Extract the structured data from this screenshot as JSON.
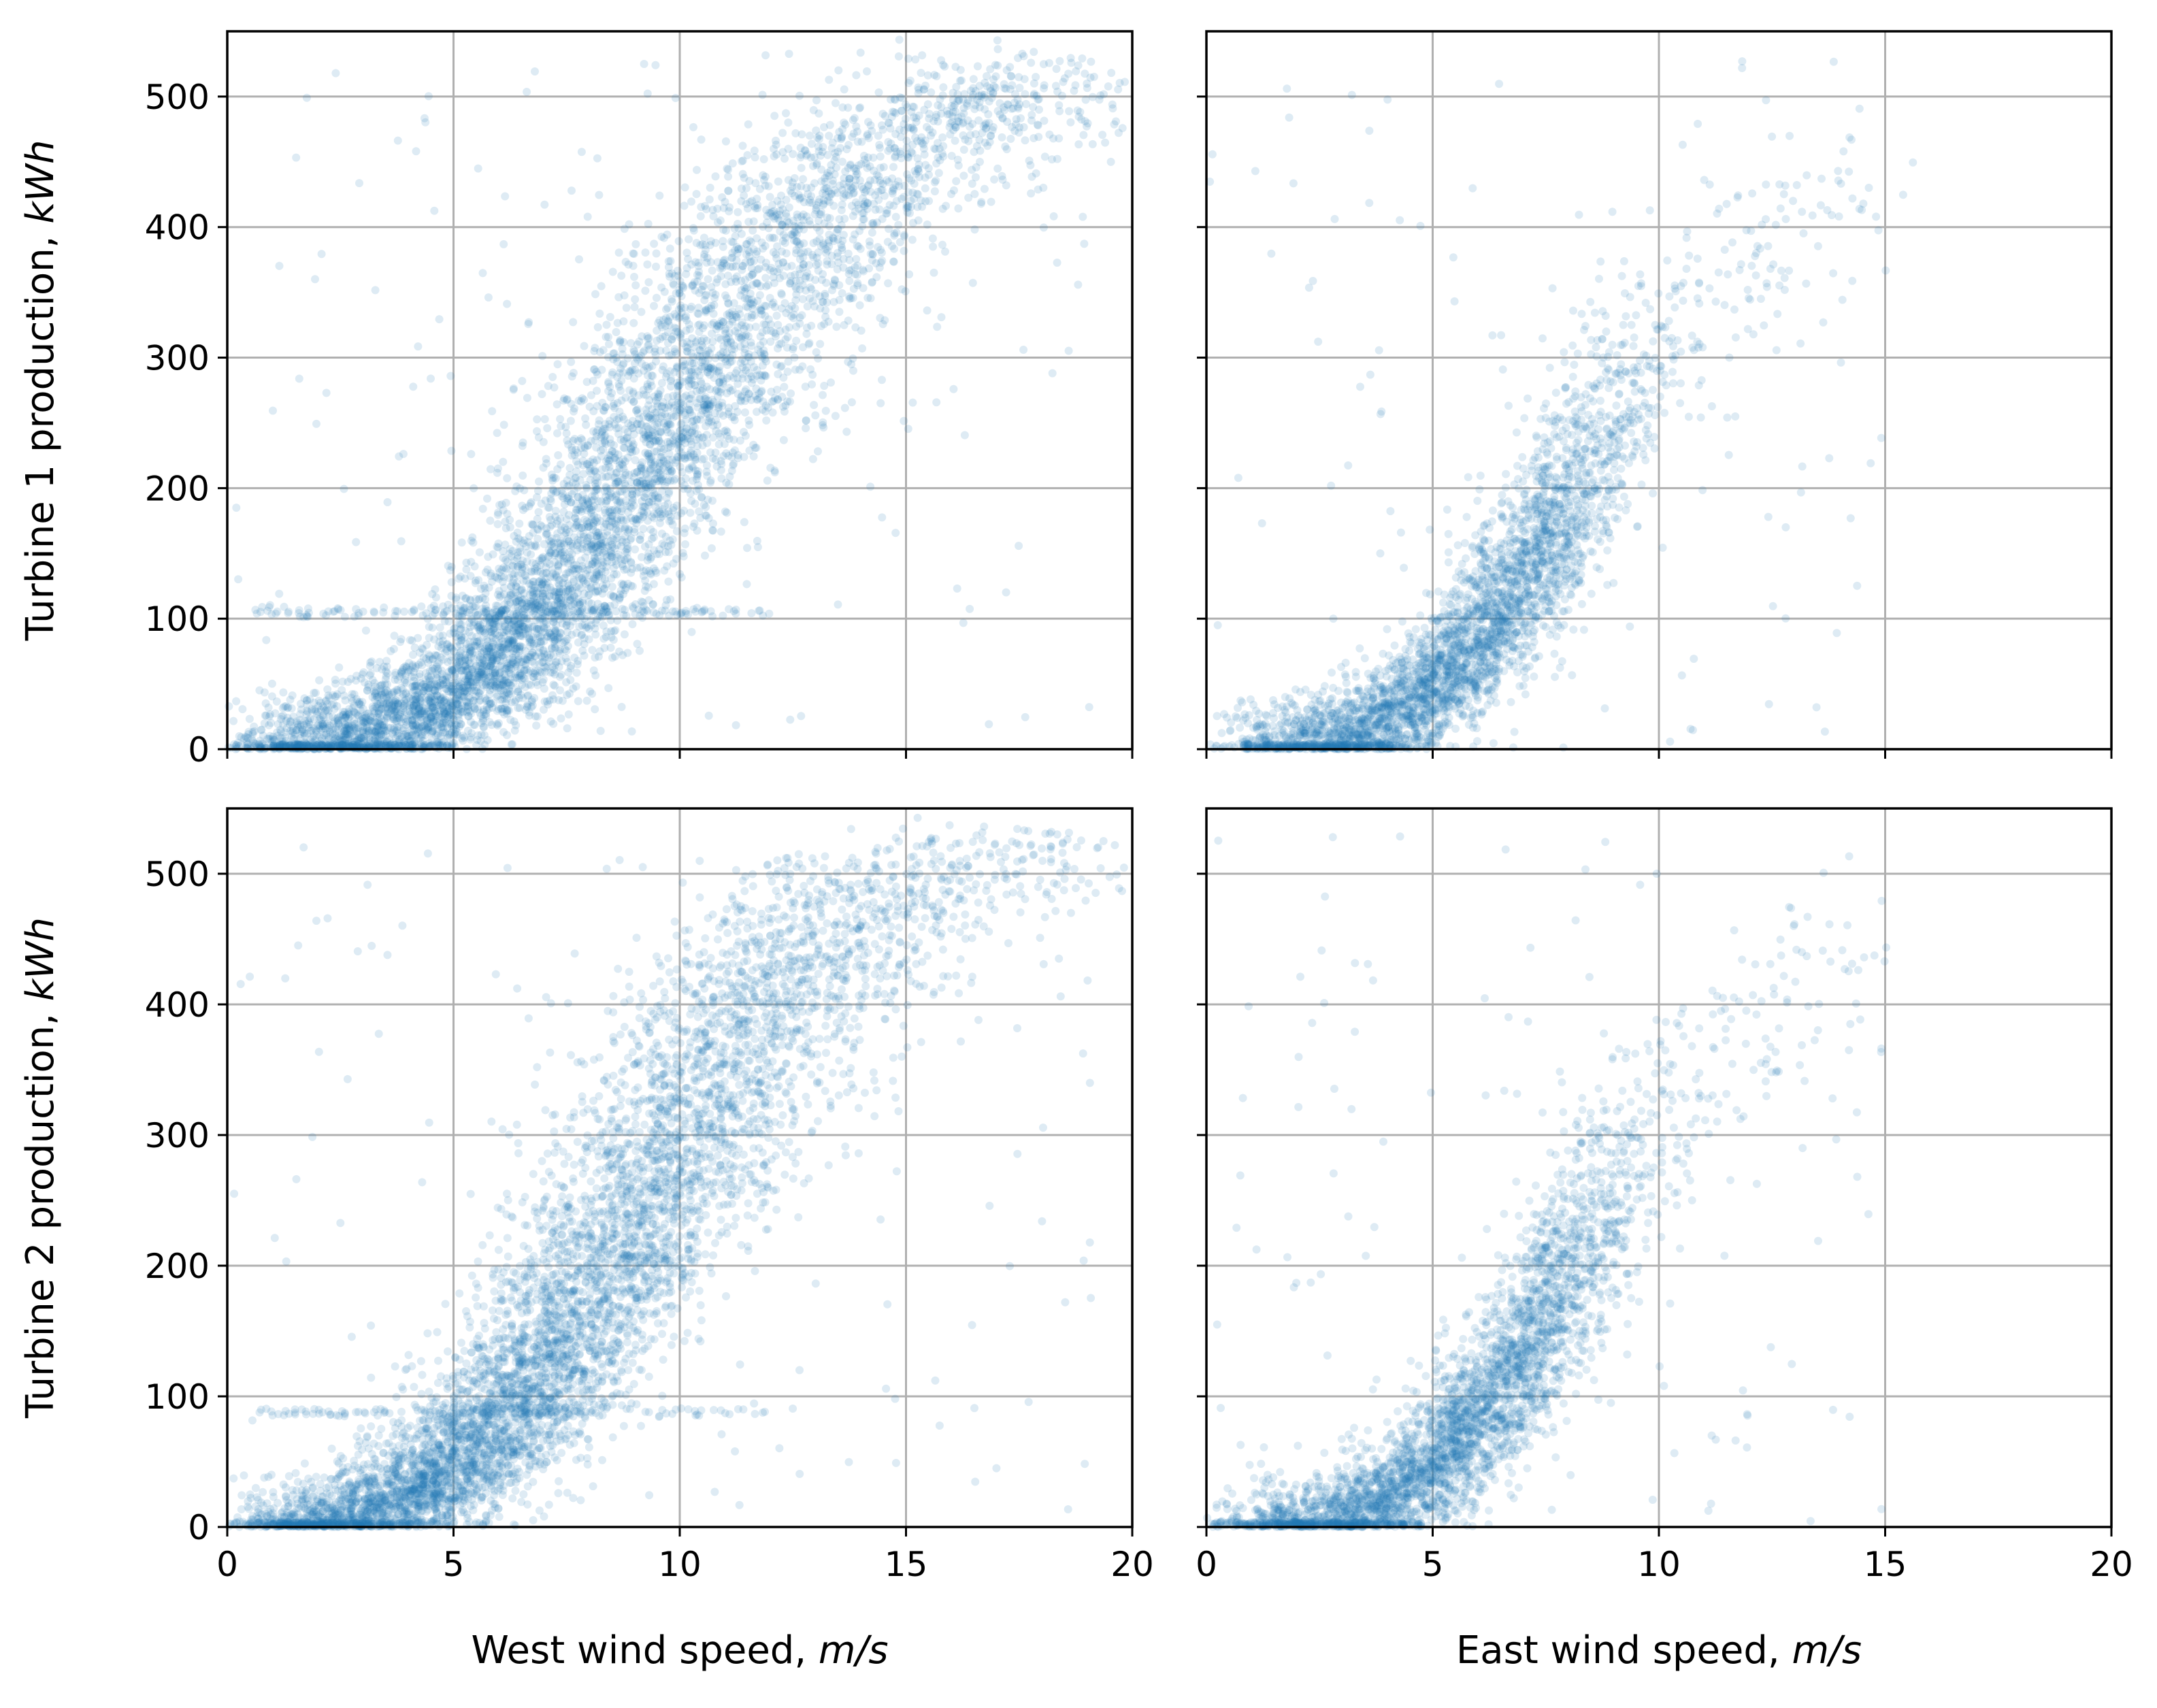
{
  "chart_data": [
    {
      "type": "scatter",
      "position": "top-left",
      "xlabel": "",
      "xlabel_unit": "",
      "ylabel": "Turbine 1 production, ",
      "ylabel_unit": "kWh",
      "xlim": [
        0,
        20
      ],
      "ylim": [
        0,
        550
      ],
      "xticks": [
        0,
        5,
        10,
        15,
        20
      ],
      "yticks": [
        0,
        100,
        200,
        300,
        400,
        500
      ],
      "grid": true,
      "marker_color": "#1f77b4",
      "marker_alpha": 0.15,
      "cloud": {
        "description": "estimated power-curve scatter cloud (center curve y vs x)",
        "center_curve_x": [
          1,
          2,
          3,
          4,
          5,
          6,
          7,
          8,
          9,
          10,
          11,
          12,
          13,
          14,
          15,
          16,
          17
        ],
        "center_curve_y": [
          0,
          2,
          8,
          20,
          40,
          70,
          110,
          160,
          210,
          265,
          320,
          370,
          410,
          445,
          470,
          480,
          485
        ],
        "spread_x": 1.5,
        "count": 6000
      },
      "bands": [
        {
          "y": 105,
          "x_range": [
            0.5,
            12
          ]
        }
      ]
    },
    {
      "type": "scatter",
      "position": "top-right",
      "xlabel": "",
      "xlabel_unit": "",
      "ylabel": "",
      "ylabel_unit": "",
      "xlim": [
        0,
        20
      ],
      "ylim": [
        0,
        550
      ],
      "xticks": [
        0,
        5,
        10,
        15,
        20
      ],
      "yticks": [
        0,
        100,
        200,
        300,
        400,
        500
      ],
      "grid": true,
      "marker_color": "#1f77b4",
      "marker_alpha": 0.15,
      "cloud": {
        "description": "estimated power-curve scatter cloud (center curve y vs x)",
        "center_curve_x": [
          1,
          2,
          3,
          4,
          5,
          6,
          7,
          8,
          9,
          10,
          11,
          12,
          13,
          14
        ],
        "center_curve_y": [
          0,
          2,
          8,
          22,
          45,
          85,
          130,
          185,
          240,
          300,
          350,
          390,
          420,
          440
        ],
        "spread_x": 1.0,
        "count": 3500,
        "density_decay_above_x": 7.5
      },
      "bands": []
    },
    {
      "type": "scatter",
      "position": "bottom-left",
      "xlabel": "West wind speed, ",
      "xlabel_unit": "m/s",
      "ylabel": "Turbine 2 production, ",
      "ylabel_unit": "kWh",
      "xlim": [
        0,
        20
      ],
      "ylim": [
        0,
        550
      ],
      "xticks": [
        0,
        5,
        10,
        15,
        20
      ],
      "yticks": [
        0,
        100,
        200,
        300,
        400,
        500
      ],
      "grid": true,
      "marker_color": "#1f77b4",
      "marker_alpha": 0.15,
      "cloud": {
        "description": "estimated power-curve scatter cloud (center curve y vs x)",
        "center_curve_x": [
          1,
          2,
          3,
          4,
          5,
          6,
          7,
          8,
          9,
          10,
          11,
          12,
          13,
          14,
          15,
          16,
          17
        ],
        "center_curve_y": [
          0,
          2,
          8,
          22,
          45,
          80,
          125,
          180,
          240,
          300,
          360,
          410,
          450,
          480,
          495,
          500,
          505
        ],
        "spread_x": 1.5,
        "count": 6000
      },
      "bands": [
        {
          "y": 88,
          "x_range": [
            0.5,
            12
          ]
        }
      ]
    },
    {
      "type": "scatter",
      "position": "bottom-right",
      "xlabel": "East wind speed, ",
      "xlabel_unit": "m/s",
      "ylabel": "",
      "ylabel_unit": "",
      "xlim": [
        0,
        20
      ],
      "ylim": [
        0,
        550
      ],
      "xticks": [
        0,
        5,
        10,
        15,
        20
      ],
      "yticks": [
        0,
        100,
        200,
        300,
        400,
        500
      ],
      "grid": true,
      "marker_color": "#1f77b4",
      "marker_alpha": 0.15,
      "cloud": {
        "description": "estimated power-curve scatter cloud (center curve y vs x)",
        "center_curve_x": [
          1,
          2,
          3,
          4,
          5,
          6,
          7,
          8,
          9,
          10,
          11,
          12,
          13,
          14
        ],
        "center_curve_y": [
          0,
          2,
          8,
          22,
          45,
          85,
          130,
          190,
          250,
          310,
          355,
          390,
          420,
          440
        ],
        "spread_x": 1.0,
        "count": 3500,
        "density_decay_above_x": 7.5
      },
      "bands": []
    }
  ]
}
